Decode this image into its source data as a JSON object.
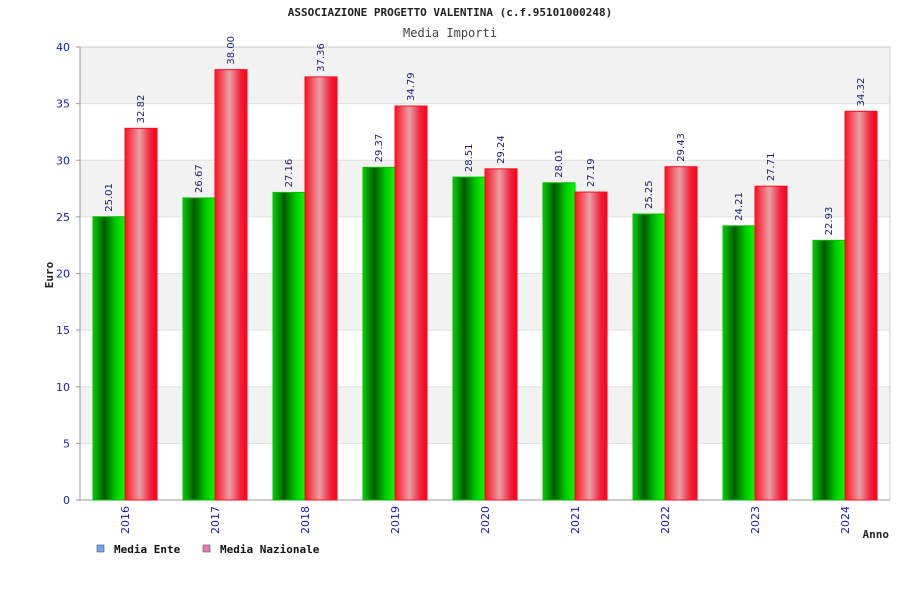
{
  "chart_data": {
    "type": "bar",
    "title": "ASSOCIAZIONE PROGETTO VALENTINA (c.f.95101000248)",
    "subtitle": "Media Importi",
    "xlabel": "Anno",
    "ylabel": "Euro",
    "categories": [
      "2016",
      "2017",
      "2018",
      "2019",
      "2020",
      "2021",
      "2022",
      "2023",
      "2024"
    ],
    "series": [
      {
        "name": "Media Ente",
        "values": [
          25.01,
          26.67,
          27.16,
          29.37,
          28.51,
          28.01,
          25.25,
          24.21,
          22.93
        ],
        "labels": [
          "25.01",
          "26.67",
          "27.16",
          "29.37",
          "28.51",
          "28.01",
          "25.25",
          "24.21",
          "22.93"
        ],
        "color": "#00c000",
        "legend_color": "#6aa6ea"
      },
      {
        "name": "Media Nazionale",
        "values": [
          32.82,
          38.0,
          37.36,
          34.79,
          29.24,
          27.19,
          29.43,
          27.71,
          34.32
        ],
        "labels": [
          "32.82",
          "38.00",
          "37.36",
          "34.79",
          "29.24",
          "27.19",
          "29.43",
          "27.71",
          "34.32"
        ],
        "color": "#ff0a1e",
        "legend_color": "#e87ab0"
      }
    ],
    "ylim": [
      0,
      40
    ],
    "yticks": [
      0,
      5,
      10,
      15,
      20,
      25,
      30,
      35,
      40
    ],
    "grid": true,
    "legend_position": "bottom-left"
  }
}
